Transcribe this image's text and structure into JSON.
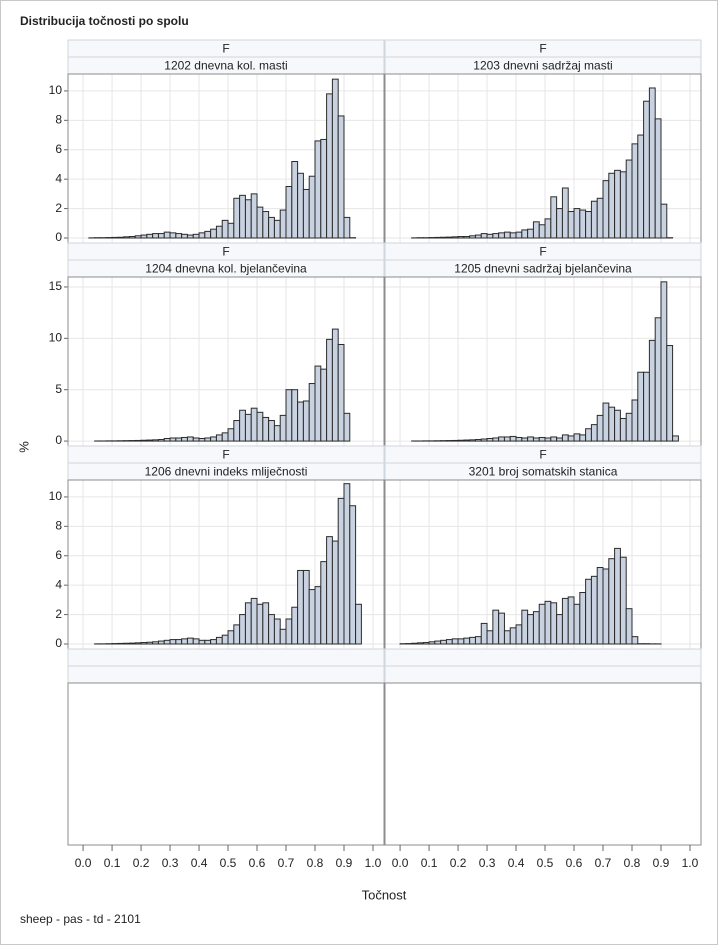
{
  "chart_data": {
    "type": "histogram",
    "title": "Distribucija točnosti po spolu",
    "footnote": "sheep - pas - td - 2101",
    "xlabel": "Točnost",
    "ylabel": "%",
    "color": "#c8d2e0",
    "grid": true,
    "bins": [
      0,
      0.02,
      0.04,
      0.06,
      0.08,
      0.1,
      0.12,
      0.14,
      0.16,
      0.18,
      0.2,
      0.22,
      0.24,
      0.26,
      0.28,
      0.3,
      0.32,
      0.34,
      0.36,
      0.38,
      0.4,
      0.42,
      0.44,
      0.46,
      0.48,
      0.5,
      0.52,
      0.54,
      0.56,
      0.58,
      0.6,
      0.62,
      0.64,
      0.66,
      0.68,
      0.7,
      0.72,
      0.74,
      0.76,
      0.78,
      0.8,
      0.82,
      0.84,
      0.86,
      0.88,
      0.9,
      0.92,
      0.94,
      0.96
    ],
    "xlim": [
      -0.052,
      1.038
    ],
    "xticks": [
      {
        "value": 0,
        "label": "0.0"
      },
      0.1,
      0.2,
      0.3,
      0.4,
      0.5,
      0.6,
      0.7,
      0.8,
      0.9,
      {
        "value": 1,
        "label": "1.0"
      }
    ],
    "rows": [
      {
        "ylim": [
          -0.34,
          11.15
        ],
        "yticks": [
          0,
          2,
          4,
          6,
          8,
          10
        ],
        "panels": [
          {
            "group": "F",
            "label": "1202 dnevna kol. masti",
            "values": [
              0,
              0.01,
              0.02,
              0.02,
              0.03,
              0.04,
              0.05,
              0.08,
              0.1,
              0.15,
              0.2,
              0.25,
              0.3,
              0.3,
              0.4,
              0.35,
              0.3,
              0.25,
              0.2,
              0.25,
              0.35,
              0.45,
              0.6,
              0.8,
              1.2,
              1.0,
              2.7,
              2.9,
              2.6,
              3.0,
              2.1,
              1.8,
              1.4,
              1.2,
              1.9,
              3.5,
              5.2,
              4.4,
              3.3,
              4.2,
              6.6,
              6.7,
              9.8,
              10.8,
              8.3,
              1.4,
              0.02,
              0
            ]
          },
          {
            "group": "F",
            "label": "1203 dnevni sadržaj masti",
            "values": [
              0,
              0,
              0.01,
              0.02,
              0.02,
              0.03,
              0.04,
              0.05,
              0.06,
              0.08,
              0.1,
              0.1,
              0.15,
              0.2,
              0.3,
              0.25,
              0.3,
              0.35,
              0.4,
              0.35,
              0.4,
              0.55,
              0.6,
              1.1,
              0.9,
              1.3,
              2.8,
              2.0,
              3.4,
              1.8,
              2.0,
              1.9,
              1.8,
              2.5,
              2.7,
              3.9,
              4.4,
              4.6,
              4.5,
              5.3,
              6.4,
              7.0,
              9.3,
              10.2,
              8.1,
              2.3,
              0.02,
              0
            ]
          }
        ]
      },
      {
        "ylim": [
          -0.48,
          15.97
        ],
        "yticks": [
          0,
          5,
          10,
          15
        ],
        "panels": [
          {
            "group": "F",
            "label": "1204 dnevna kol. bjelančevina",
            "values": [
              0,
              0,
              0.01,
              0.01,
              0.02,
              0.02,
              0.03,
              0.04,
              0.05,
              0.06,
              0.08,
              0.1,
              0.12,
              0.15,
              0.25,
              0.3,
              0.3,
              0.35,
              0.4,
              0.3,
              0.25,
              0.3,
              0.4,
              0.6,
              0.8,
              1.2,
              2.0,
              3.0,
              2.6,
              3.2,
              2.8,
              2.3,
              2.0,
              1.5,
              2.5,
              5.0,
              5.0,
              3.8,
              3.9,
              5.6,
              7.3,
              7.0,
              9.9,
              10.9,
              9.4,
              2.7,
              0,
              0
            ]
          },
          {
            "group": "F",
            "label": "1205 dnevni sadržaj bjelančevina",
            "values": [
              0,
              0,
              0.01,
              0.01,
              0.02,
              0.02,
              0.03,
              0.04,
              0.05,
              0.06,
              0.08,
              0.1,
              0.12,
              0.15,
              0.2,
              0.25,
              0.3,
              0.4,
              0.4,
              0.45,
              0.35,
              0.3,
              0.4,
              0.3,
              0.35,
              0.3,
              0.4,
              0.3,
              0.6,
              0.5,
              0.7,
              0.6,
              1.2,
              1.6,
              2.5,
              3.7,
              3.3,
              3.0,
              2.2,
              2.7,
              4.0,
              6.7,
              6.7,
              9.8,
              12.0,
              15.5,
              9.3,
              0.5
            ]
          }
        ]
      },
      {
        "ylim": [
          -0.34,
          11.15
        ],
        "yticks": [
          0,
          2,
          4,
          6,
          8,
          10
        ],
        "panels": [
          {
            "group": "F",
            "label": "1206 dnevni indeks mliječnosti",
            "values": [
              0,
              0,
              0.01,
              0.01,
              0.02,
              0.03,
              0.04,
              0.05,
              0.06,
              0.08,
              0.1,
              0.12,
              0.15,
              0.2,
              0.25,
              0.3,
              0.3,
              0.35,
              0.4,
              0.35,
              0.25,
              0.25,
              0.3,
              0.45,
              0.6,
              0.9,
              1.3,
              2.0,
              2.8,
              3.1,
              2.7,
              2.8,
              2.0,
              1.7,
              1.0,
              1.7,
              2.5,
              5.0,
              5.0,
              3.7,
              3.9,
              5.6,
              7.3,
              7.0,
              9.9,
              10.9,
              9.4,
              2.7
            ]
          },
          {
            "group": "F",
            "label": "3201 broj somatskih stanica",
            "values": [
              0.02,
              0.03,
              0.05,
              0.08,
              0.1,
              0.15,
              0.2,
              0.25,
              0.3,
              0.35,
              0.35,
              0.4,
              0.45,
              0.5,
              1.4,
              0.9,
              2.3,
              2.1,
              0.9,
              1.1,
              1.3,
              2.3,
              2.0,
              2.2,
              2.7,
              2.9,
              2.8,
              2.0,
              3.1,
              3.2,
              2.7,
              3.5,
              4.4,
              4.6,
              5.2,
              5.1,
              5.8,
              6.5,
              5.9,
              2.4,
              0.5,
              0.02,
              0.02,
              0.01,
              0.01,
              0,
              0,
              0
            ]
          }
        ]
      }
    ]
  }
}
